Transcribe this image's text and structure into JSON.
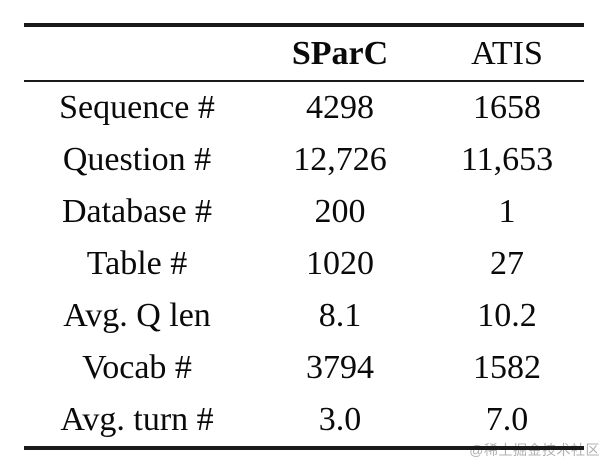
{
  "table": {
    "title_semantic": "dataset-statistics-comparison",
    "columns": [
      "",
      "SParC",
      "ATIS"
    ],
    "rows": [
      {
        "label": "Sequence #",
        "sparc": "4298",
        "atis": "1658"
      },
      {
        "label": "Question #",
        "sparc": "12,726",
        "atis": "11,653"
      },
      {
        "label": "Database #",
        "sparc": "200",
        "atis": "1"
      },
      {
        "label": "Table #",
        "sparc": "1020",
        "atis": "27"
      },
      {
        "label": "Avg. Q len",
        "sparc": "8.1",
        "atis": "10.2"
      },
      {
        "label": "Vocab #",
        "sparc": "3794",
        "atis": "1582"
      },
      {
        "label": "Avg. turn #",
        "sparc": "3.0",
        "atis": "7.0"
      }
    ]
  },
  "watermark": "@稀土掘金技术社区",
  "colors": {
    "text": "#0a0a0a",
    "rule": "#1a1a1a",
    "watermark": "#b0b0b0",
    "background": "#ffffff"
  }
}
